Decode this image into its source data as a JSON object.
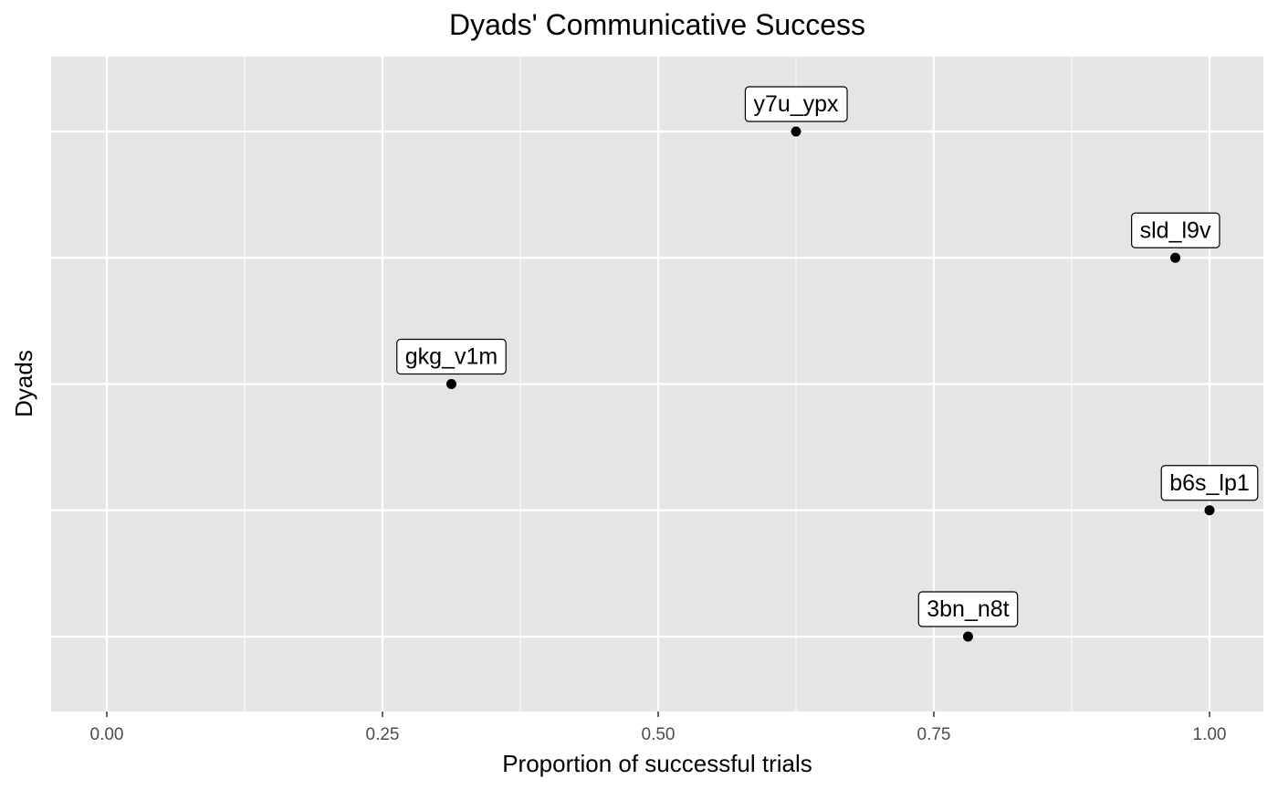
{
  "chart_data": {
    "type": "scatter",
    "title": "Dyads' Communicative Success",
    "xlabel": "Proportion of successful trials",
    "ylabel": "Dyads",
    "xlim": [
      -0.05,
      1.05
    ],
    "x_ticks": [
      0.0,
      0.25,
      0.5,
      0.75,
      1.0
    ],
    "x_tick_labels": [
      "0.00",
      "0.25",
      "0.50",
      "0.75",
      "1.00"
    ],
    "y_categories": [
      "3bn_n8t",
      "b6s_lp1",
      "gkg_v1m",
      "sld_l9v",
      "y7u_ypx"
    ],
    "points": [
      {
        "label": "y7u_ypx",
        "x": 0.625
      },
      {
        "label": "sld_l9v",
        "x": 0.969
      },
      {
        "label": "gkg_v1m",
        "x": 0.3125
      },
      {
        "label": "b6s_lp1",
        "x": 1.0
      },
      {
        "label": "3bn_n8t",
        "x": 0.781
      }
    ],
    "grid": true,
    "panel_color": "#e5e5e5",
    "grid_color": "#ffffff",
    "point_color": "#000000"
  }
}
